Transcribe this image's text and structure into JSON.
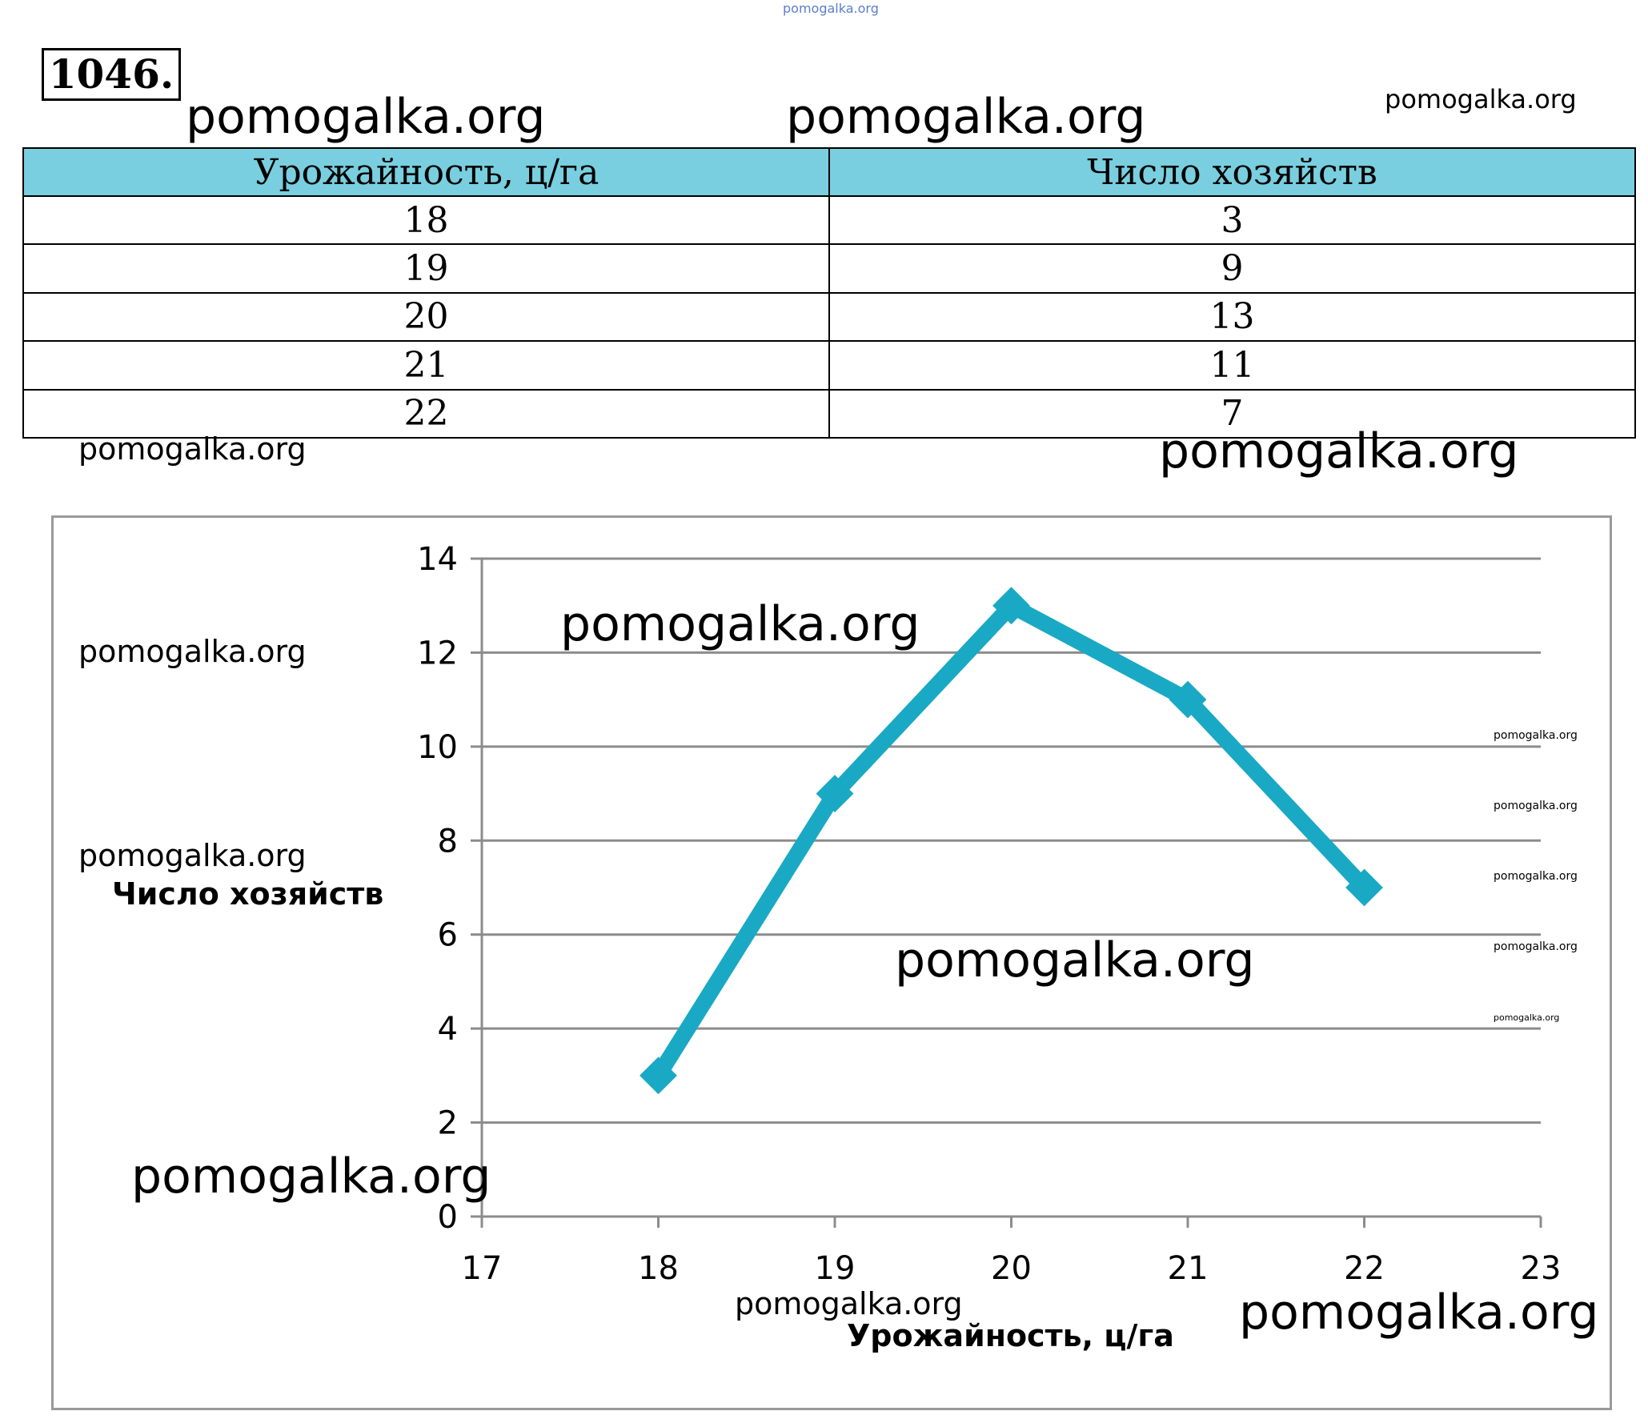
{
  "problem_number": "1046.",
  "watermarks": {
    "top_tiny": "pomogalka.org",
    "large": "pomogalka.org",
    "medium": "pomogalka.org",
    "small": "pomogalka.org",
    "tiny": "pomogalka.org"
  },
  "table": {
    "headers": [
      "Урожайность, ц/га",
      "Число хозяйств"
    ],
    "rows": [
      [
        "18",
        "3"
      ],
      [
        "19",
        "9"
      ],
      [
        "20",
        "13"
      ],
      [
        "21",
        "11"
      ],
      [
        "22",
        "7"
      ]
    ],
    "header_color": "#79cfdf"
  },
  "chart_data": {
    "type": "line",
    "title": "",
    "xlabel": "Урожайность, ц/га",
    "ylabel": "Число хозяйств",
    "x": [
      18,
      19,
      20,
      21,
      22
    ],
    "series": [
      {
        "values": [
          3,
          9,
          13,
          11,
          7
        ],
        "color": "#1aa9c4",
        "marker": "diamond"
      }
    ],
    "xlim": [
      17,
      23
    ],
    "ylim": [
      0,
      14
    ],
    "xticks": [
      "17",
      "18",
      "19",
      "20",
      "21",
      "22",
      "23"
    ],
    "yticks": [
      "0",
      "2",
      "4",
      "6",
      "8",
      "10",
      "12",
      "14"
    ],
    "grid": "horizontal",
    "legend": "none"
  }
}
